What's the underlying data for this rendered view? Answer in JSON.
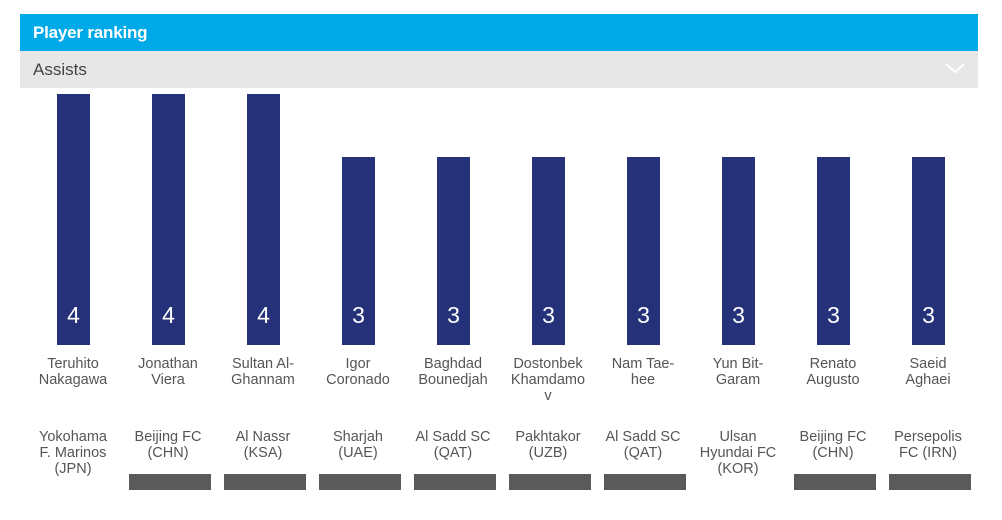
{
  "header": {
    "title": "Player ranking"
  },
  "dropdown": {
    "selected": "Assists"
  },
  "icons": {
    "dropdown": "chevron-down-icon"
  },
  "colors": {
    "header_bg": "#00a9e8",
    "bar": "#25327a",
    "dropdown_bg": "#e7e7e7"
  },
  "chart_data": {
    "type": "bar",
    "ylim": [
      0,
      4
    ],
    "grid": false,
    "categories": [
      "Teruhito Nakagawa",
      "Jonathan Viera",
      "Sultan Al-Ghannam",
      "Igor Coronado",
      "Baghdad Bounedjah",
      "Dostonbek Khamdamov",
      "Nam Tae-hee",
      "Yun Bit-Garam",
      "Renato Augusto",
      "Saeid Aghaei"
    ],
    "values": [
      4,
      4,
      4,
      3,
      3,
      3,
      3,
      3,
      3,
      3
    ],
    "name_lines": [
      [
        "Teruhito",
        "Nakagawa"
      ],
      [
        "Jonathan",
        "Viera"
      ],
      [
        "Sultan Al-",
        "Ghannam"
      ],
      [
        "Igor",
        "Coronado"
      ],
      [
        "Baghdad",
        "Bounedjah"
      ],
      [
        "Dostonbek",
        "Khamdamo",
        "v"
      ],
      [
        "Nam Tae-",
        "hee"
      ],
      [
        "Yun Bit-",
        "Garam"
      ],
      [
        "Renato",
        "Augusto"
      ],
      [
        "Saeid",
        "Aghaei"
      ]
    ],
    "teams": [
      [
        "Yokohama",
        "F. Marinos",
        "(JPN)"
      ],
      [
        "Beijing FC",
        "(CHN)"
      ],
      [
        "Al Nassr",
        "(KSA)"
      ],
      [
        "Sharjah",
        "(UAE)"
      ],
      [
        "Al Sadd SC",
        "(QAT)"
      ],
      [
        "Pakhtakor",
        "(UZB)"
      ],
      [
        "Al Sadd SC",
        "(QAT)"
      ],
      [
        "Ulsan",
        "Hyundai FC",
        "(KOR)"
      ],
      [
        "Beijing FC",
        "(CHN)"
      ],
      [
        "Persepolis",
        "FC (IRN)"
      ]
    ],
    "flag_visible": [
      false,
      true,
      true,
      true,
      true,
      true,
      true,
      false,
      true,
      true
    ]
  }
}
